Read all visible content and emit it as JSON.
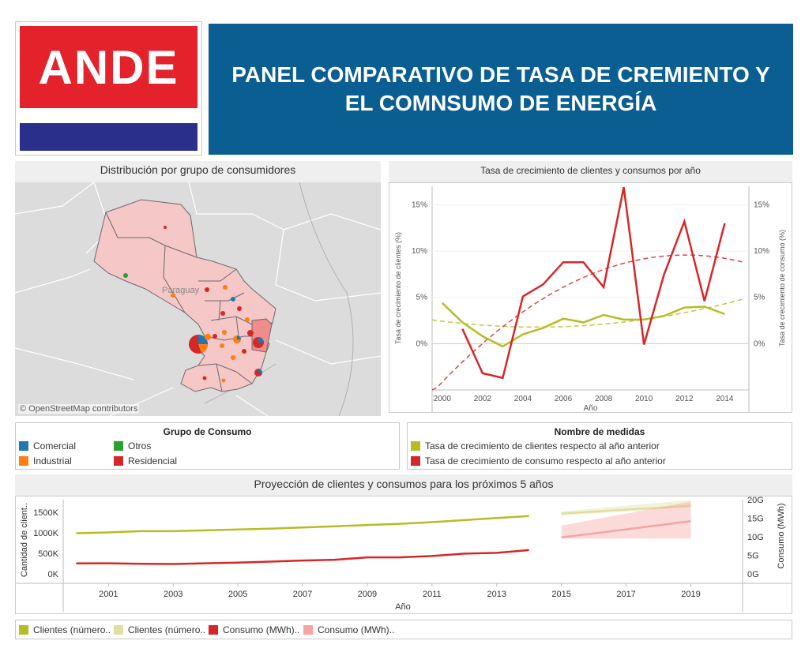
{
  "logo": {
    "text": "ANDE"
  },
  "title": "PANEL COMPARATIVO DE TASA DE CREMIENTO Y EL COMNSUMO DE ENERGÍA",
  "map_panel": {
    "title": "Distribución por grupo de consumidores",
    "place_label": "Paraguay",
    "attribution": "© OpenStreetMap contributors"
  },
  "growth_panel": {
    "title": "Tasa de crecimiento de clientes y consumos por año"
  },
  "legend_group": {
    "title": "Grupo de Consumo",
    "items": [
      {
        "label": "Comercial",
        "color": "#1f77b4"
      },
      {
        "label": "Industrial",
        "color": "#ff7f0e"
      },
      {
        "label": "Otros",
        "color": "#2ca02c"
      },
      {
        "label": "Residencial",
        "color": "#d62728"
      }
    ]
  },
  "legend_measures": {
    "title": "Nombre de medidas",
    "items": [
      {
        "label": "Tasa de crecimiento de clientes respecto al año anterior",
        "color": "#b5bd25"
      },
      {
        "label": "Tasa de crecimiento de consumo respecto al año anterior",
        "color": "#d62728"
      }
    ]
  },
  "projection_panel": {
    "title": "Proyección de clientes y consumos para los próximos 5 años"
  },
  "legend_projection": {
    "items": [
      {
        "label": "Clientes (número..",
        "color": "#b5bd25"
      },
      {
        "label": "Clientes (número..",
        "color": "#dfe0a0"
      },
      {
        "label": "Consumo (MWh)..",
        "color": "#d62728"
      },
      {
        "label": "Consumo (MWh)..",
        "color": "#f6a3a3"
      }
    ]
  },
  "chart_data": [
    {
      "type": "line",
      "title": "Tasa de crecimiento de clientes y consumos por año",
      "xlabel": "Año",
      "ylabel": "Tasa de crecimiento de clientes (%)",
      "ylabel_right": "Tasa de crecimiento de consumo (%)",
      "xlim": [
        1999.5,
        2015.2
      ],
      "ylim": [
        -5,
        17
      ],
      "x_ticks": [
        "2000",
        "2002",
        "2004",
        "2006",
        "2008",
        "2010",
        "2012",
        "2014"
      ],
      "y_ticks": [
        "0%",
        "5%",
        "10%",
        "15%"
      ],
      "series": [
        {
          "name": "Tasa de crecimiento de clientes respecto al año anterior",
          "color": "#b5bd25",
          "x": [
            2000,
            2001,
            2002,
            2003,
            2004,
            2005,
            2006,
            2007,
            2008,
            2009,
            2010,
            2011,
            2012,
            2013,
            2014
          ],
          "values": [
            4.4,
            2.3,
            0.8,
            -0.3,
            1.0,
            1.7,
            2.7,
            2.3,
            3.1,
            2.6,
            2.6,
            3.0,
            3.9,
            4.0,
            3.2
          ]
        },
        {
          "name": "Tasa de crecimiento de consumo respecto al año anterior",
          "color": "#d62728",
          "x": [
            2001,
            2002,
            2003,
            2004,
            2005,
            2006,
            2007,
            2008,
            2009,
            2010,
            2011,
            2012,
            2013,
            2014
          ],
          "values": [
            1.6,
            -3.2,
            -3.7,
            5.1,
            6.4,
            8.8,
            8.8,
            6.1,
            16.9,
            -0.1,
            7.5,
            13.2,
            4.6,
            13.0
          ]
        }
      ],
      "trend_lines": true
    },
    {
      "type": "line",
      "title": "Proyección de clientes y consumos para los próximos 5 años",
      "xlabel": "Año",
      "ylabel": "Cantidad de client..",
      "ylabel_right": "Consumo (MWh)",
      "x_ticks": [
        "2001",
        "2003",
        "2005",
        "2007",
        "2009",
        "2011",
        "2013",
        "2015",
        "2017",
        "2019"
      ],
      "y_ticks_left": [
        "0K",
        "500K",
        "1000K",
        "1500K"
      ],
      "y_ticks_right": [
        "0G",
        "5G",
        "10G",
        "15G",
        "20G"
      ],
      "series": [
        {
          "name": "Clientes (número..",
          "color": "#b5bd25",
          "axis": "left",
          "x": [
            2000,
            2001,
            2002,
            2003,
            2004,
            2005,
            2006,
            2007,
            2008,
            2009,
            2010,
            2011,
            2012,
            2013,
            2014
          ],
          "values": [
            990000,
            1010000,
            1040000,
            1040000,
            1060000,
            1080000,
            1100000,
            1130000,
            1160000,
            1190000,
            1220000,
            1260000,
            1310000,
            1360000,
            1410000
          ]
        },
        {
          "name": "Clientes (número..",
          "color": "#dfe0a0",
          "axis": "left",
          "projected": true,
          "x": [
            2015,
            2019
          ],
          "values": [
            1470000,
            1660000
          ],
          "band_low": [
            1420000,
            1620000
          ],
          "band_high": [
            1520000,
            1800000
          ]
        },
        {
          "name": "Consumo (MWh)..",
          "color": "#d62728",
          "axis": "right",
          "x": [
            2000,
            2001,
            2002,
            2003,
            2004,
            2005,
            2006,
            2007,
            2008,
            2009,
            2010,
            2011,
            2012,
            2013,
            2014
          ],
          "values": [
            2800,
            2850,
            2700,
            2650,
            2850,
            3050,
            3300,
            3600,
            3800,
            4450,
            4450,
            4800,
            5450,
            5650,
            6400
          ]
        },
        {
          "name": "Consumo (MWh)..",
          "color": "#f6a3a3",
          "axis": "right",
          "projected": true,
          "x": [
            2015,
            2019
          ],
          "values": [
            9800,
            14200
          ],
          "band_low": [
            9500,
            9500
          ],
          "band_high": [
            13000,
            19500
          ]
        }
      ]
    }
  ]
}
